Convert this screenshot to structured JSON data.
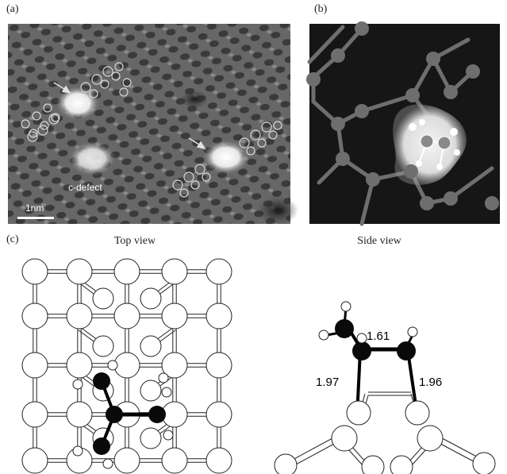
{
  "figure": {
    "panel_a": {
      "label": "(a)",
      "defect_label": "c-defect",
      "scale_bar_label": "1nm"
    },
    "panel_b": {
      "label": "(b)"
    },
    "panel_c": {
      "label": "(c)",
      "top_view_title": "Top view",
      "side_view_title": "Side view",
      "bond_lengths": [
        "1.61",
        "1.97",
        "1.96"
      ]
    }
  }
}
